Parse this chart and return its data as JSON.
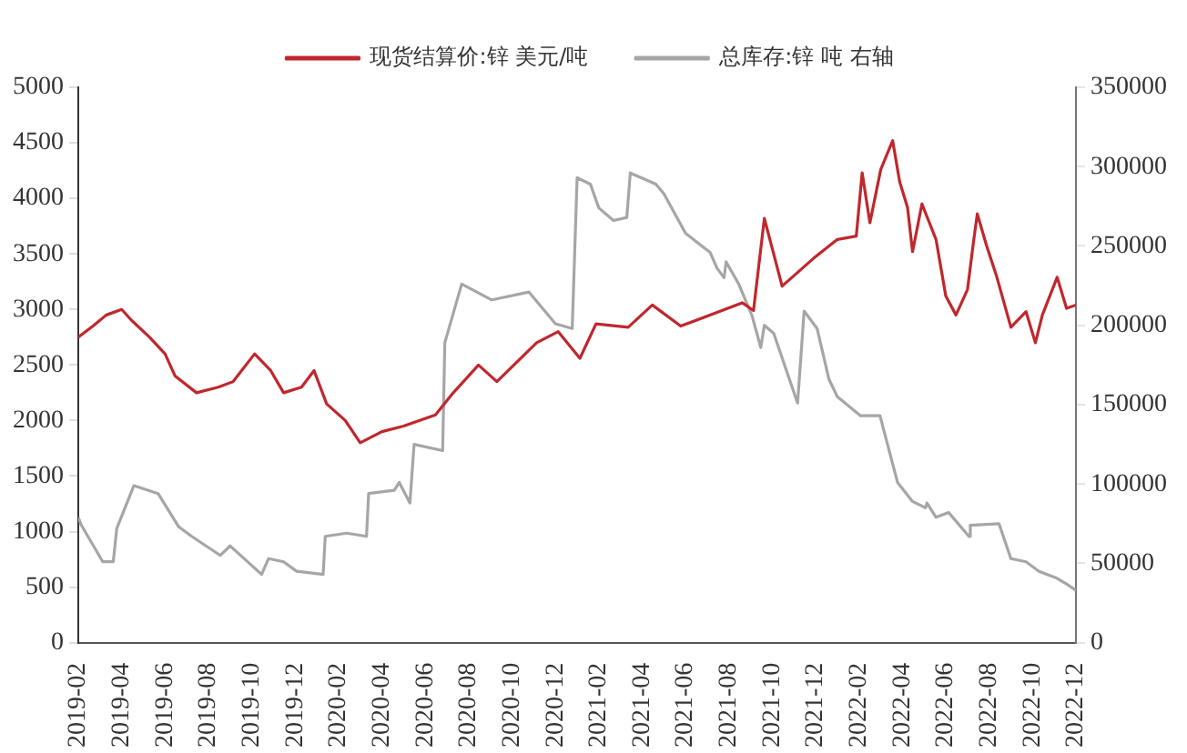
{
  "chart_data": {
    "type": "line",
    "legend": "top",
    "grid": false,
    "marker": "none",
    "line_style": "solid",
    "xlim": [
      "2019-02",
      "2022-12"
    ],
    "xticks": [
      "2019-02",
      "2019-04",
      "2019-06",
      "2019-08",
      "2019-10",
      "2019-12",
      "2020-02",
      "2020-04",
      "2020-06",
      "2020-08",
      "2020-10",
      "2020-12",
      "2021-02",
      "2021-04",
      "2021-06",
      "2021-08",
      "2021-10",
      "2021-12",
      "2022-02",
      "2022-04",
      "2022-06",
      "2022-08",
      "2022-10",
      "2022-12"
    ],
    "ylim": [
      0,
      5000
    ],
    "yticks": [
      0,
      500,
      1000,
      1500,
      2000,
      2500,
      3000,
      3500,
      4000,
      4500,
      5000
    ],
    "y2lim": [
      0,
      350000
    ],
    "y2ticks": [
      0,
      50000,
      100000,
      150000,
      200000,
      250000,
      300000,
      350000
    ],
    "series": [
      {
        "name": "现货结算价:锌 美元/吨",
        "color": "#c0272d",
        "x": [
          "2019-02-01",
          "2019-02-20",
          "2019-03-10",
          "2019-04-01",
          "2019-04-15",
          "2019-05-10",
          "2019-06-01",
          "2019-06-15",
          "2019-07-15",
          "2019-08-15",
          "2019-09-05",
          "2019-10-05",
          "2019-10-28",
          "2019-11-15",
          "2019-12-10",
          "2019-12-28",
          "2020-01-15",
          "2020-02-10",
          "2020-03-01",
          "2020-04-01",
          "2020-05-01",
          "2020-06-15",
          "2020-07-10",
          "2020-08-15",
          "2020-09-10",
          "2020-11-05",
          "2020-12-05",
          "2021-01-05",
          "2021-01-28",
          "2021-03-12",
          "2021-04-15",
          "2021-05-25",
          "2021-08-20",
          "2021-09-05",
          "2021-09-20",
          "2021-10-15",
          "2021-11-28",
          "2022-01-01",
          "2022-01-28",
          "2022-02-05",
          "2022-02-15",
          "2022-03-01",
          "2022-03-18",
          "2022-03-28",
          "2022-04-08",
          "2022-04-15",
          "2022-04-28",
          "2022-05-18",
          "2022-06-01",
          "2022-06-15",
          "2022-07-01",
          "2022-07-10",
          "2022-07-15",
          "2022-07-28",
          "2022-08-12",
          "2022-09-01",
          "2022-09-22",
          "2022-10-05",
          "2022-10-15",
          "2022-11-05",
          "2022-11-18",
          "2022-12-01"
        ],
        "values": [
          2750,
          2850,
          2950,
          3000,
          2900,
          2750,
          2600,
          2400,
          2250,
          2300,
          2350,
          2600,
          2450,
          2250,
          2300,
          2450,
          2150,
          2000,
          1800,
          1900,
          1950,
          2050,
          2250,
          2500,
          2350,
          2700,
          2800,
          2560,
          2870,
          2840,
          3040,
          2850,
          3060,
          2990,
          3820,
          3210,
          3460,
          3630,
          3660,
          4230,
          3780,
          4260,
          4520,
          4150,
          3920,
          3520,
          3950,
          3630,
          3120,
          2950,
          3180,
          3630,
          3860,
          3580,
          3290,
          2840,
          2980,
          2700,
          2950,
          3290,
          3010,
          3040
        ]
      },
      {
        "name": "总库存:锌 吨 右轴",
        "color": "#a6a6a6",
        "axis": "y2",
        "x": [
          "2019-02-01",
          "2019-02-05",
          "2019-03-05",
          "2019-03-20",
          "2019-03-25",
          "2019-04-18",
          "2019-05-22",
          "2019-06-20",
          "2019-07-08",
          "2019-08-18",
          "2019-09-01",
          "2019-10-15",
          "2019-10-25",
          "2019-11-15",
          "2019-12-03",
          "2020-01-10",
          "2020-01-13",
          "2020-02-12",
          "2020-03-10",
          "2020-03-13",
          "2020-04-18",
          "2020-04-25",
          "2020-05-10",
          "2020-05-16",
          "2020-06-25",
          "2020-06-28",
          "2020-07-22",
          "2020-09-03",
          "2020-10-25",
          "2020-12-01",
          "2020-12-25",
          "2021-01-01",
          "2021-01-20",
          "2021-02-01",
          "2021-02-20",
          "2021-03-10",
          "2021-03-15",
          "2021-04-20",
          "2021-05-01",
          "2021-06-01",
          "2021-07-05",
          "2021-07-15",
          "2021-07-25",
          "2021-07-28",
          "2021-08-15",
          "2021-09-03",
          "2021-09-15",
          "2021-09-20",
          "2021-10-03",
          "2021-11-06",
          "2021-11-15",
          "2021-12-03",
          "2021-12-20",
          "2022-01-01",
          "2022-02-03",
          "2022-02-28",
          "2022-03-25",
          "2022-04-15",
          "2022-05-03",
          "2022-05-05",
          "2022-05-18",
          "2022-06-05",
          "2022-07-03",
          "2022-07-05",
          "2022-08-15",
          "2022-09-01",
          "2022-09-22",
          "2022-10-10",
          "2022-11-03",
          "2022-11-18",
          "2022-12-01"
        ],
        "values": [
          79000,
          74000,
          51000,
          51000,
          72000,
          99000,
          94000,
          73000,
          67000,
          55000,
          61000,
          43000,
          53000,
          51000,
          45000,
          43000,
          67000,
          69000,
          67000,
          94000,
          96000,
          101000,
          88000,
          125000,
          121000,
          189000,
          226000,
          216000,
          221000,
          201000,
          198000,
          293000,
          289000,
          274000,
          266000,
          268000,
          296000,
          289000,
          283000,
          258000,
          246000,
          236000,
          230000,
          240000,
          226000,
          206000,
          186000,
          200000,
          195000,
          151000,
          209000,
          198000,
          166000,
          155000,
          143000,
          143000,
          101000,
          89000,
          85000,
          88000,
          79000,
          82000,
          67000,
          74000,
          75000,
          53000,
          51000,
          45000,
          41000,
          37000,
          33000
        ]
      }
    ]
  }
}
